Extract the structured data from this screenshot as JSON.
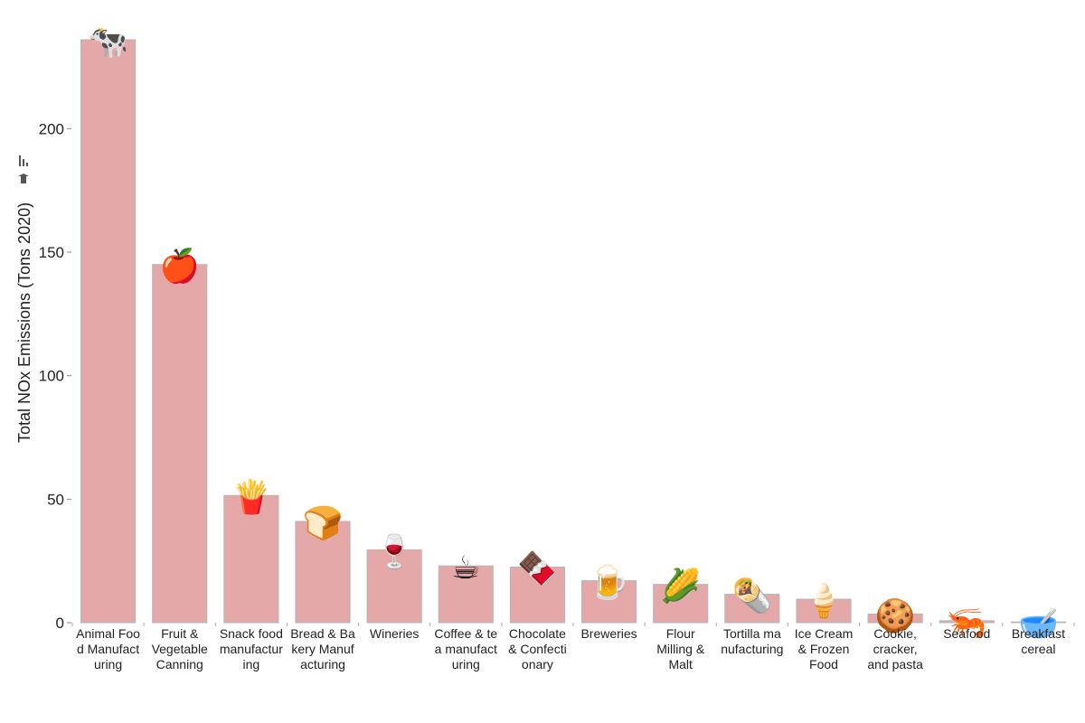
{
  "chart_data": {
    "type": "bar",
    "title": "",
    "xlabel": "",
    "ylabel": "Total NOx Emissions (Tons 2020)",
    "ylim": [
      0,
      236
    ],
    "yticks": [
      0,
      50,
      100,
      150,
      200
    ],
    "grid": false,
    "bar_color": "#e5a8a8",
    "bar_stroke": "#b5b5b5",
    "categories": [
      [
        "Animal Foo",
        "d Manufact",
        "uring"
      ],
      [
        "Fruit &",
        "Vegetable",
        "Canning"
      ],
      [
        "Snack food",
        "manufactur",
        "ing"
      ],
      [
        "Bread & Ba",
        "kery Manuf",
        "acturing"
      ],
      [
        "Wineries"
      ],
      [
        "Coffee & te",
        "a manufact",
        "uring"
      ],
      [
        "Chocolate",
        "& Confecti",
        "onary"
      ],
      [
        "Breweries"
      ],
      [
        "Flour",
        "Milling &",
        "Malt"
      ],
      [
        "Tortilla ma",
        "nufacturing"
      ],
      [
        "Ice Cream",
        "& Frozen",
        "Food"
      ],
      [
        "Cookie,",
        "cracker,",
        "and pasta"
      ],
      [
        "Seafood"
      ],
      [
        "Breakfast",
        "cereal"
      ]
    ],
    "values": [
      236,
      145,
      51.5,
      41,
      29.5,
      23,
      22.5,
      17,
      15.5,
      11.5,
      9.5,
      3.5,
      0.8,
      0.3
    ],
    "icons": [
      "cow-icon",
      "apple-icon",
      "chips-icon",
      "bread-icon",
      "wine-icon",
      "coffee-icon",
      "chocolate-icon",
      "beer-icon",
      "corn-icon",
      "burrito-icon",
      "ice-cream-icon",
      "cookie-icon",
      "shrimp-icon",
      "cereal-icon"
    ],
    "icon_glyphs": [
      "🐄",
      "🍎",
      "🍟",
      "🍞",
      "🍷",
      "☕",
      "🍫",
      "🍺",
      "🌽",
      "🌯",
      "🍦",
      "🍪",
      "🦐",
      "🥣"
    ]
  }
}
